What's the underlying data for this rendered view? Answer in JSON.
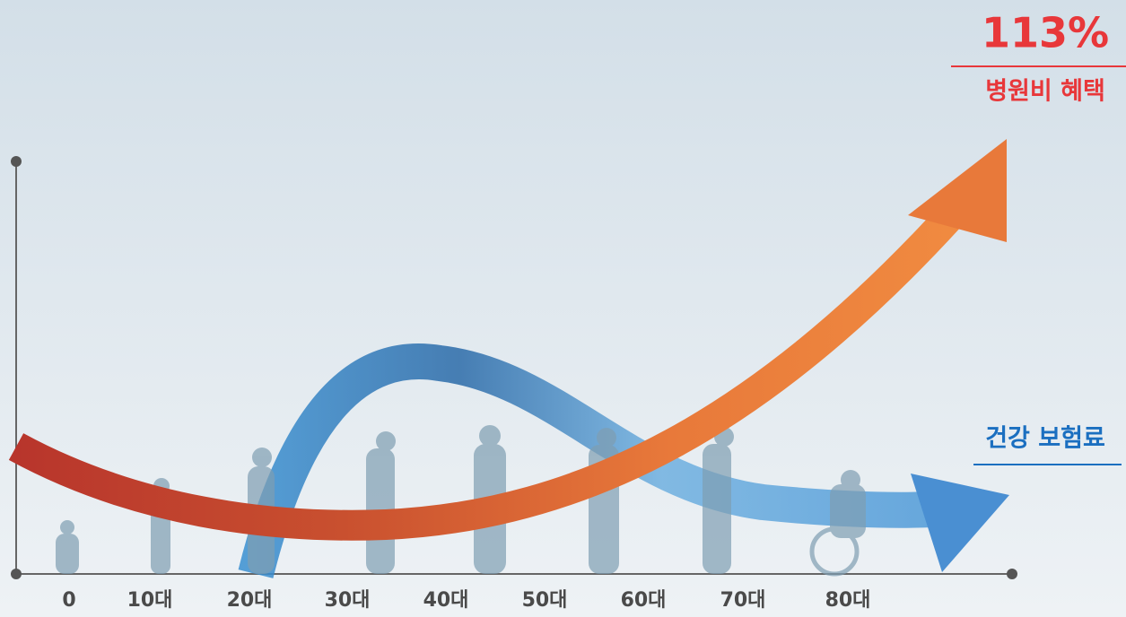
{
  "benefit": {
    "value": "113%",
    "label": "병원비 혜택"
  },
  "premium": {
    "label": "건강 보험료"
  },
  "x_axis": {
    "categories": [
      "0",
      "10대",
      "20대",
      "30대",
      "40대",
      "50대",
      "60대",
      "70대",
      "80대"
    ]
  }
}
